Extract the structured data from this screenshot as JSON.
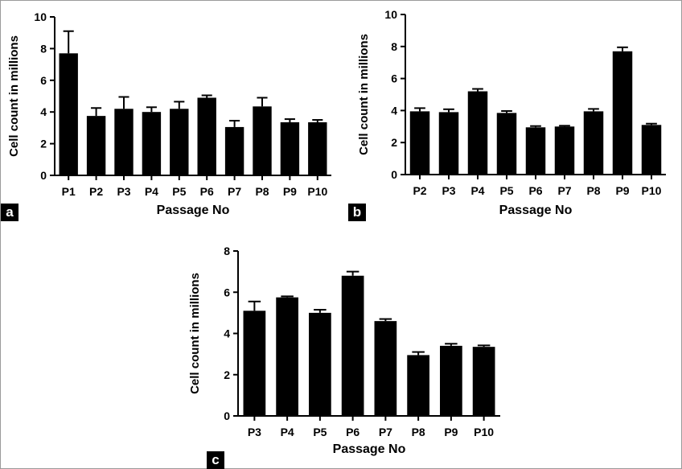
{
  "panels": [
    {
      "label": "a",
      "chart_data": {
        "type": "bar",
        "categories": [
          "P1",
          "P2",
          "P3",
          "P4",
          "P5",
          "P6",
          "P7",
          "P8",
          "P9",
          "P10"
        ],
        "values": [
          7.7,
          3.75,
          4.2,
          4.0,
          4.2,
          4.9,
          3.05,
          4.35,
          3.35,
          3.35
        ],
        "errors": [
          1.4,
          0.5,
          0.75,
          0.3,
          0.45,
          0.15,
          0.4,
          0.55,
          0.2,
          0.15
        ],
        "xlabel": "Passage No",
        "ylabel": "Cell count in millions",
        "ylim": [
          0,
          10
        ],
        "yticks": [
          0,
          2,
          4,
          6,
          8,
          10
        ],
        "grid": false,
        "bar_color": "#000000"
      }
    },
    {
      "label": "b",
      "chart_data": {
        "type": "bar",
        "categories": [
          "P2",
          "P3",
          "P4",
          "P5",
          "P6",
          "P7",
          "P8",
          "P9",
          "P10"
        ],
        "values": [
          3.95,
          3.9,
          5.2,
          3.85,
          2.95,
          3.0,
          3.95,
          7.7,
          3.1
        ],
        "errors": [
          0.2,
          0.18,
          0.15,
          0.12,
          0.08,
          0.05,
          0.15,
          0.25,
          0.08
        ],
        "xlabel": "Passage No",
        "ylabel": "Cell count in millions",
        "ylim": [
          0,
          10
        ],
        "yticks": [
          0,
          2,
          4,
          6,
          8,
          10
        ],
        "grid": false,
        "bar_color": "#000000"
      }
    },
    {
      "label": "c",
      "chart_data": {
        "type": "bar",
        "categories": [
          "P3",
          "P4",
          "P5",
          "P6",
          "P7",
          "P8",
          "P9",
          "P10"
        ],
        "values": [
          5.1,
          5.75,
          5.0,
          6.8,
          4.6,
          2.95,
          3.4,
          3.35
        ],
        "errors": [
          0.45,
          0.05,
          0.15,
          0.2,
          0.1,
          0.15,
          0.1,
          0.07
        ],
        "xlabel": "Passage No",
        "ylabel": "Cell count in millions",
        "ylim": [
          0,
          8
        ],
        "yticks": [
          0,
          2,
          4,
          6,
          8
        ],
        "grid": false,
        "bar_color": "#000000"
      }
    }
  ]
}
